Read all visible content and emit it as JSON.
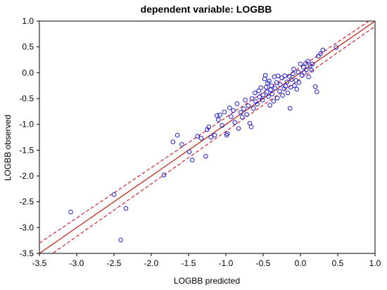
{
  "chart_data": {
    "type": "scatter",
    "title": "dependent variable: LOGBB",
    "xlabel": "LOGBB predicted",
    "ylabel": "LOGBB observed",
    "xlim": [
      -3.5,
      1.0
    ],
    "ylim": [
      -3.5,
      1.0
    ],
    "x_ticks": [
      "-3.5",
      "-3.0",
      "-2.5",
      "-2.0",
      "-1.5",
      "-1.0",
      "-0.5",
      "0.0",
      "0.5",
      "1.0"
    ],
    "y_ticks": [
      "1.0",
      "0.5",
      "0.0",
      "-0.5",
      "-1.0",
      "-1.5",
      "-2.0",
      "-2.5",
      "-3.0",
      "-3.5"
    ],
    "grid": false,
    "colors": {
      "points": "#1f1fd6",
      "fit_line": "#c0392b",
      "confidence_band": "#d6202a"
    },
    "fit_line": {
      "x": [
        -3.5,
        1.0
      ],
      "y": [
        -3.5,
        1.0
      ]
    },
    "confidence_band": {
      "upper": {
        "x": [
          -3.5,
          1.0
        ],
        "y": [
          -3.3,
          1.08
        ]
      },
      "lower": {
        "x": [
          -3.5,
          1.0
        ],
        "y": [
          -3.68,
          0.9
        ]
      }
    },
    "points": [
      {
        "x": -3.08,
        "y": -2.7
      },
      {
        "x": -2.5,
        "y": -2.36
      },
      {
        "x": -2.41,
        "y": -3.24
      },
      {
        "x": -2.34,
        "y": -2.63
      },
      {
        "x": -1.83,
        "y": -1.98
      },
      {
        "x": -1.71,
        "y": -1.34
      },
      {
        "x": -1.65,
        "y": -1.21
      },
      {
        "x": -1.59,
        "y": -1.39
      },
      {
        "x": -1.49,
        "y": -1.53
      },
      {
        "x": -1.45,
        "y": -1.69
      },
      {
        "x": -1.38,
        "y": -1.23
      },
      {
        "x": -1.33,
        "y": -1.27
      },
      {
        "x": -1.27,
        "y": -1.62
      },
      {
        "x": -1.25,
        "y": -1.1
      },
      {
        "x": -1.23,
        "y": -1.05
      },
      {
        "x": -1.2,
        "y": -1.25
      },
      {
        "x": -1.15,
        "y": -1.21
      },
      {
        "x": -1.12,
        "y": -0.83
      },
      {
        "x": -1.1,
        "y": -0.91
      },
      {
        "x": -1.08,
        "y": -0.82
      },
      {
        "x": -1.05,
        "y": -1.02
      },
      {
        "x": -1.02,
        "y": -0.76
      },
      {
        "x": -0.99,
        "y": -1.21
      },
      {
        "x": -0.98,
        "y": -1.18
      },
      {
        "x": -0.95,
        "y": -0.68
      },
      {
        "x": -0.93,
        "y": -0.85
      },
      {
        "x": -0.9,
        "y": -0.73
      },
      {
        "x": -0.88,
        "y": -0.96
      },
      {
        "x": -0.85,
        "y": -0.6
      },
      {
        "x": -0.83,
        "y": -1.08
      },
      {
        "x": -0.8,
        "y": -0.77
      },
      {
        "x": -0.78,
        "y": -0.86
      },
      {
        "x": -0.76,
        "y": -0.7
      },
      {
        "x": -0.74,
        "y": -0.53
      },
      {
        "x": -0.72,
        "y": -0.81
      },
      {
        "x": -0.7,
        "y": -0.64
      },
      {
        "x": -0.68,
        "y": -0.98
      },
      {
        "x": -0.66,
        "y": -1.05
      },
      {
        "x": -0.65,
        "y": -0.5
      },
      {
        "x": -0.63,
        "y": -0.69
      },
      {
        "x": -0.61,
        "y": -0.39
      },
      {
        "x": -0.6,
        "y": -0.56
      },
      {
        "x": -0.58,
        "y": -0.61
      },
      {
        "x": -0.56,
        "y": -0.35
      },
      {
        "x": -0.55,
        "y": -0.47
      },
      {
        "x": -0.53,
        "y": -0.29
      },
      {
        "x": -0.51,
        "y": -0.53
      },
      {
        "x": -0.5,
        "y": -0.43
      },
      {
        "x": -0.48,
        "y": -0.12
      },
      {
        "x": -0.47,
        "y": -0.05
      },
      {
        "x": -0.46,
        "y": -0.28
      },
      {
        "x": -0.45,
        "y": -0.37
      },
      {
        "x": -0.44,
        "y": -0.2
      },
      {
        "x": -0.43,
        "y": -0.46
      },
      {
        "x": -0.42,
        "y": -0.16
      },
      {
        "x": -0.41,
        "y": -0.63
      },
      {
        "x": -0.4,
        "y": -0.33
      },
      {
        "x": -0.39,
        "y": -0.25
      },
      {
        "x": -0.38,
        "y": -0.41
      },
      {
        "x": -0.36,
        "y": -0.55
      },
      {
        "x": -0.35,
        "y": -0.08
      },
      {
        "x": -0.34,
        "y": -0.3
      },
      {
        "x": -0.32,
        "y": -0.19
      },
      {
        "x": -0.31,
        "y": -0.49
      },
      {
        "x": -0.3,
        "y": -0.06
      },
      {
        "x": -0.28,
        "y": -0.36
      },
      {
        "x": -0.27,
        "y": -0.23
      },
      {
        "x": -0.25,
        "y": -0.1
      },
      {
        "x": -0.24,
        "y": -0.44
      },
      {
        "x": -0.22,
        "y": -0.31
      },
      {
        "x": -0.21,
        "y": -0.06
      },
      {
        "x": -0.2,
        "y": -0.26
      },
      {
        "x": -0.18,
        "y": -0.18
      },
      {
        "x": -0.17,
        "y": -0.39
      },
      {
        "x": -0.15,
        "y": -0.07
      },
      {
        "x": -0.14,
        "y": -0.69
      },
      {
        "x": -0.13,
        "y": -0.28
      },
      {
        "x": -0.12,
        "y": -0.13
      },
      {
        "x": -0.1,
        "y": -0.02
      },
      {
        "x": -0.09,
        "y": 0.07
      },
      {
        "x": -0.08,
        "y": -0.25
      },
      {
        "x": -0.06,
        "y": -0.15
      },
      {
        "x": -0.05,
        "y": -0.32
      },
      {
        "x": -0.03,
        "y": 0.01
      },
      {
        "x": -0.02,
        "y": -0.19
      },
      {
        "x": 0.0,
        "y": 0.17
      },
      {
        "x": 0.02,
        "y": -0.05
      },
      {
        "x": 0.04,
        "y": 0.11
      },
      {
        "x": 0.05,
        "y": 0.0
      },
      {
        "x": 0.07,
        "y": 0.18
      },
      {
        "x": 0.08,
        "y": 0.06
      },
      {
        "x": 0.1,
        "y": 0.22
      },
      {
        "x": 0.11,
        "y": -0.08
      },
      {
        "x": 0.13,
        "y": 0.13
      },
      {
        "x": 0.15,
        "y": 0.05
      },
      {
        "x": 0.16,
        "y": 0.17
      },
      {
        "x": 0.2,
        "y": -0.27
      },
      {
        "x": 0.22,
        "y": -0.37
      },
      {
        "x": 0.24,
        "y": 0.32
      },
      {
        "x": 0.27,
        "y": 0.37
      },
      {
        "x": 0.3,
        "y": 0.44
      },
      {
        "x": 0.48,
        "y": 0.49
      }
    ]
  }
}
